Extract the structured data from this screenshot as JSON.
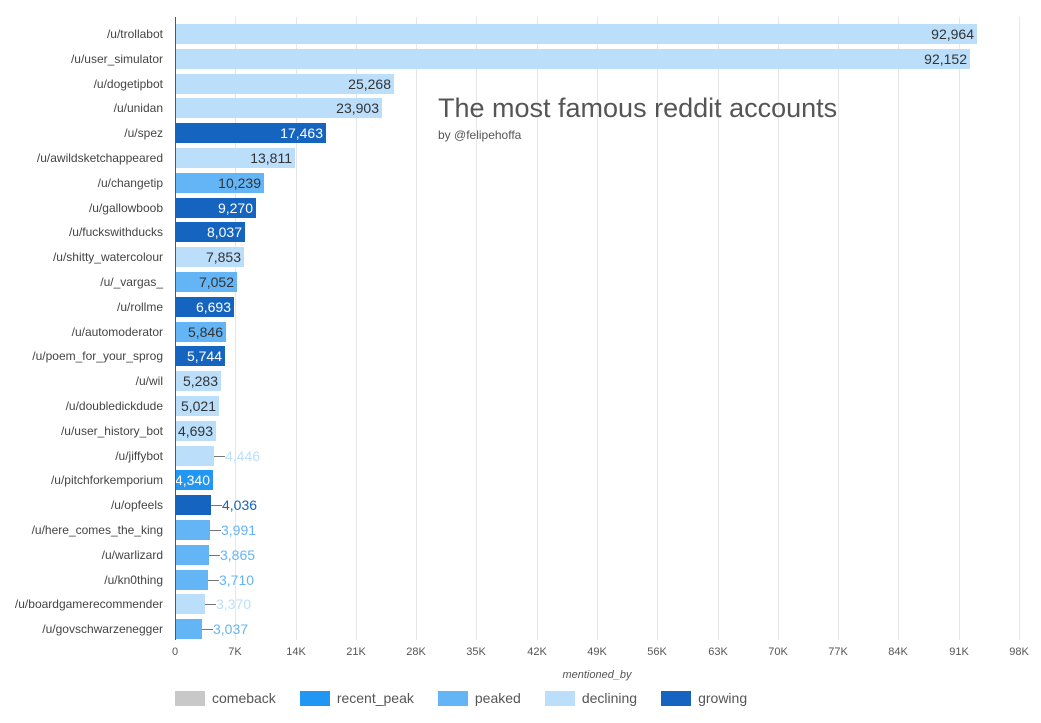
{
  "chart_data": {
    "type": "bar",
    "orientation": "horizontal",
    "title": "The most famous reddit accounts",
    "subtitle": "by @felipehoffa",
    "xlabel": "mentioned_by",
    "ylabel": "",
    "xlim": [
      0,
      98000
    ],
    "grid": true,
    "legend_position": "bottom",
    "x_ticks": [
      "0",
      "7K",
      "14K",
      "21K",
      "28K",
      "35K",
      "42K",
      "49K",
      "56K",
      "63K",
      "70K",
      "77K",
      "84K",
      "91K",
      "98K"
    ],
    "legend": [
      {
        "name": "comeback",
        "color": "#c8c8c8"
      },
      {
        "name": "recent_peak",
        "color": "#2196f3"
      },
      {
        "name": "peaked",
        "color": "#64b5f6"
      },
      {
        "name": "declining",
        "color": "#bbdefb"
      },
      {
        "name": "growing",
        "color": "#1565c0"
      }
    ],
    "categories": [
      "/u/trollabot",
      "/u/user_simulator",
      "/u/dogetipbot",
      "/u/unidan",
      "/u/spez",
      "/u/awildsketchappeared",
      "/u/changetip",
      "/u/gallowboob",
      "/u/fuckswithducks",
      "/u/shitty_watercolour",
      "/u/_vargas_",
      "/u/rollme",
      "/u/automoderator",
      "/u/poem_for_your_sprog",
      "/u/wil",
      "/u/doubledickdude",
      "/u/user_history_bot",
      "/u/jiffybot",
      "/u/pitchforkemporium",
      "/u/opfeels",
      "/u/here_comes_the_king",
      "/u/warlizard",
      "/u/kn0thing",
      "/u/boardgamerecommender",
      "/u/govschwarzenegger"
    ],
    "values": [
      92964,
      92152,
      25268,
      23903,
      17463,
      13811,
      10239,
      9270,
      8037,
      7853,
      7052,
      6693,
      5846,
      5744,
      5283,
      5021,
      4693,
      4446,
      4340,
      4036,
      3991,
      3865,
      3710,
      3370,
      3037
    ],
    "value_labels": [
      "92,964",
      "92,152",
      "25,268",
      "23,903",
      "17,463",
      "13,811",
      "10,239",
      "9,270",
      "8,037",
      "7,853",
      "7,052",
      "6,693",
      "5,846",
      "5,744",
      "5,283",
      "5,021",
      "4,693",
      "4,446",
      "4,340",
      "4,036",
      "3,991",
      "3,865",
      "3,710",
      "3,370",
      "3,037"
    ],
    "status": [
      "declining",
      "declining",
      "declining",
      "declining",
      "growing",
      "declining",
      "peaked",
      "growing",
      "growing",
      "declining",
      "peaked",
      "growing",
      "peaked",
      "growing",
      "declining",
      "declining",
      "declining",
      "declining",
      "recent_peak",
      "growing",
      "peaked",
      "peaked",
      "peaked",
      "declining",
      "peaked"
    ]
  }
}
